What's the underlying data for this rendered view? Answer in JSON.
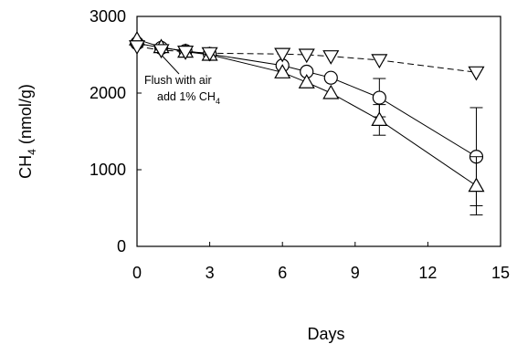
{
  "chart_data": {
    "type": "line",
    "xlabel": "Days",
    "ylabel": "CH",
    "ylabel_sub": "4",
    "ylabel_unit": " (nmol/g)",
    "xlim": [
      0,
      15
    ],
    "ylim": [
      0,
      3000
    ],
    "x_ticks": [
      0,
      3,
      6,
      9,
      12,
      15
    ],
    "y_ticks": [
      0,
      1000,
      2000,
      3000
    ],
    "grid": false,
    "annotation": {
      "line1": "Flush with air",
      "line2_prefix": "add 1% CH",
      "line2_sub": "4",
      "x": 1,
      "y": 2570
    },
    "series": [
      {
        "marker": "circle",
        "x": [
          0,
          1,
          2,
          3,
          6,
          7,
          8,
          10,
          14
        ],
        "y": [
          2650,
          2590,
          2550,
          2510,
          2360,
          2280,
          2200,
          1940,
          1170
        ],
        "err": [
          0,
          0,
          0,
          0,
          0,
          0,
          0,
          250,
          640
        ]
      },
      {
        "marker": "triangle-up",
        "x": [
          0,
          1,
          2,
          3,
          6,
          7,
          8,
          10,
          14
        ],
        "y": [
          2700,
          2600,
          2540,
          2500,
          2270,
          2140,
          2000,
          1650,
          790
        ],
        "err": [
          0,
          0,
          0,
          0,
          0,
          0,
          0,
          200,
          380
        ]
      },
      {
        "marker": "triangle-down",
        "x": [
          0,
          1,
          2,
          3,
          6,
          7,
          8,
          10,
          14
        ],
        "y": [
          2610,
          2560,
          2540,
          2520,
          2510,
          2500,
          2480,
          2430,
          2270
        ],
        "err": [
          0,
          0,
          0,
          0,
          0,
          0,
          0,
          0,
          0
        ]
      }
    ]
  }
}
